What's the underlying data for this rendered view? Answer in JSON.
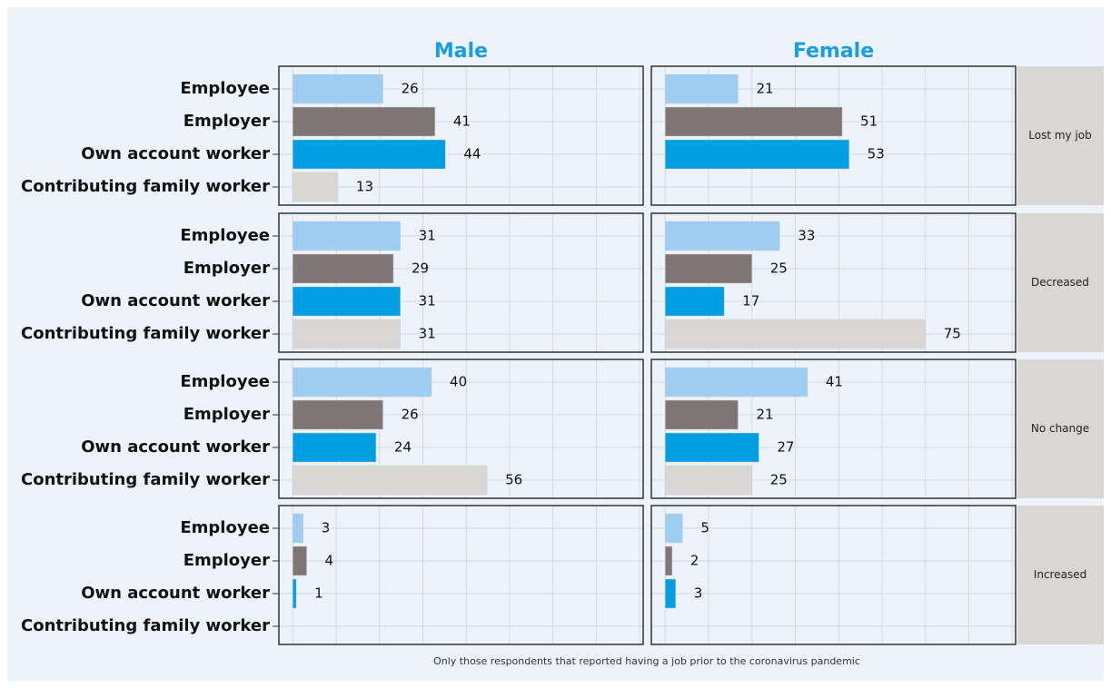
{
  "chart_data": {
    "type": "bar",
    "orientation": "horizontal",
    "columns": [
      "Male",
      "Female"
    ],
    "rows": [
      "Lost my job",
      "Decreased",
      "No change",
      "Increased"
    ],
    "categories": [
      "Employee",
      "Employer",
      "Own account worker",
      "Contributing family worker"
    ],
    "colors": [
      "#9dcdf0",
      "#7f7574",
      "#009fe3",
      "#d9d7d4"
    ],
    "values": [
      [
        [
          26,
          41,
          44,
          13
        ],
        [
          21,
          51,
          53,
          null
        ]
      ],
      [
        [
          31,
          29,
          31,
          31
        ],
        [
          33,
          25,
          17,
          75
        ]
      ],
      [
        [
          40,
          26,
          24,
          56
        ],
        [
          41,
          21,
          27,
          25
        ]
      ],
      [
        [
          3,
          4,
          1,
          null
        ],
        [
          5,
          2,
          3,
          null
        ]
      ]
    ],
    "xlim": [
      -4,
      101
    ],
    "xticks": [
      0,
      12.5,
      25,
      37.5,
      50,
      62.5,
      75,
      87.5,
      100
    ],
    "grid": true,
    "note": "Only those respondents that reported having a job prior to the coronavirus pandemic"
  }
}
